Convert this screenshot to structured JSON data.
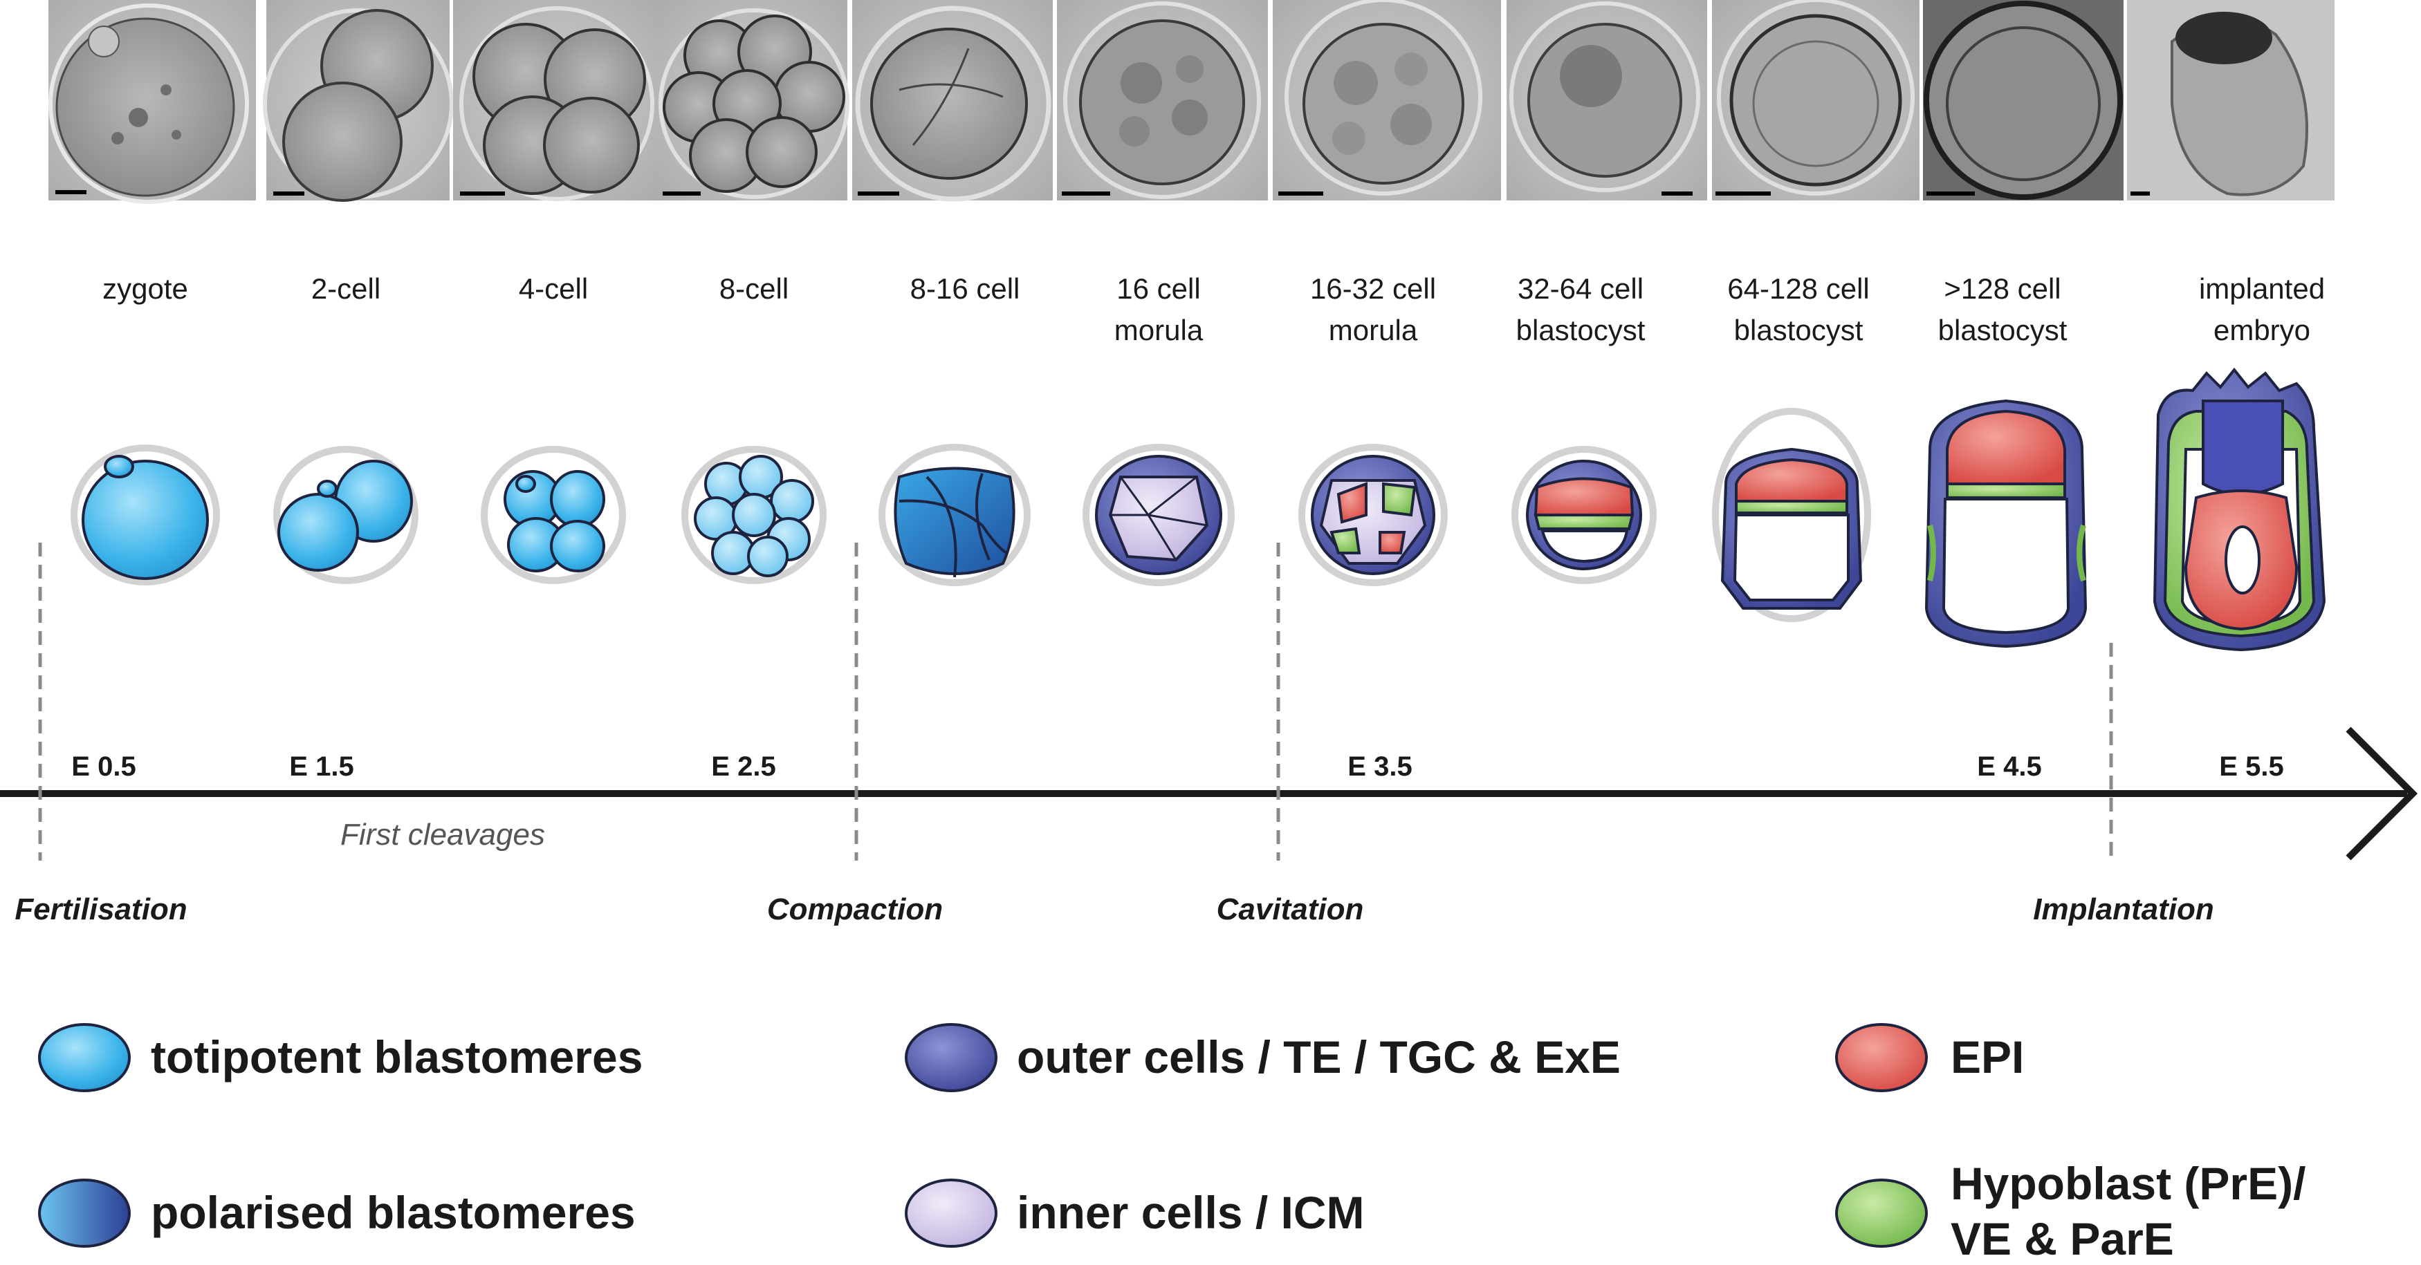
{
  "stages": [
    {
      "lines": [
        "zygote"
      ]
    },
    {
      "lines": [
        "2-cell"
      ]
    },
    {
      "lines": [
        "4-cell"
      ]
    },
    {
      "lines": [
        "8-cell"
      ]
    },
    {
      "lines": [
        "8-16 cell"
      ]
    },
    {
      "lines": [
        "16 cell",
        "morula"
      ]
    },
    {
      "lines": [
        "16-32 cell",
        "morula"
      ]
    },
    {
      "lines": [
        "32-64 cell",
        "blastocyst"
      ]
    },
    {
      "lines": [
        "64-128 cell",
        "blastocyst"
      ]
    },
    {
      "lines": [
        ">128 cell",
        "blastocyst"
      ]
    },
    {
      "lines": [
        "implanted",
        "embryo"
      ]
    }
  ],
  "timeline": {
    "day_labels": [
      "E 0.5",
      "E 1.5",
      "E 2.5",
      "E 3.5",
      "E 4.5",
      "E 5.5"
    ],
    "period_label": "First cleavages",
    "events": [
      "Fertilisation",
      "Compaction",
      "Cavitation",
      "Implantation"
    ]
  },
  "legend": [
    {
      "label_lines": [
        "totipotent blastomeres"
      ],
      "swatch": "totipotent"
    },
    {
      "label_lines": [
        "polarised blastomeres"
      ],
      "swatch": "polarised"
    },
    {
      "label_lines": [
        "outer cells / TE / TGC & ExE"
      ],
      "swatch": "outer"
    },
    {
      "label_lines": [
        "inner cells / ICM"
      ],
      "swatch": "inner"
    },
    {
      "label_lines": [
        "EPI"
      ],
      "swatch": "epi"
    },
    {
      "label_lines": [
        "Hypoblast (PrE)/",
        "VE & ParE"
      ],
      "swatch": "hypo"
    }
  ],
  "colors": {
    "totipotent": "#3cb4ea",
    "polarised_light": "#3aa8e6",
    "polarised_dark": "#1f4f9e",
    "outer": "#5a62b0",
    "inner": "#cfc3e6",
    "epi": "#e0605a",
    "hypo": "#8cc964",
    "outline": "#1e2340",
    "zona": "#d2d2d2"
  }
}
